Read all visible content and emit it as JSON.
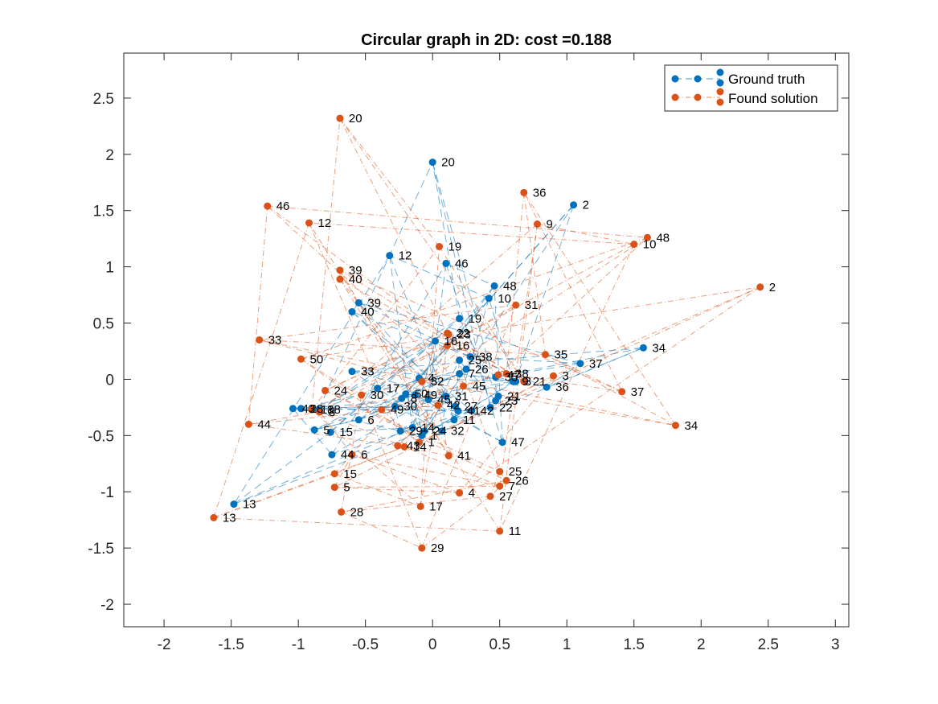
{
  "chart_data": {
    "type": "scatter",
    "title": "Circular graph in 2D: cost =0.188",
    "xlabel": "",
    "ylabel": "",
    "xlim": [
      -2.3,
      3.1
    ],
    "ylim": [
      -2.2,
      2.9
    ],
    "xticks": [
      -2,
      -1.5,
      -1,
      -0.5,
      0,
      0.5,
      1,
      1.5,
      2,
      2.5,
      3
    ],
    "yticks": [
      -2,
      -1.5,
      -1,
      -0.5,
      0,
      0.5,
      1,
      1.5,
      2,
      2.5
    ],
    "xtick_labels": [
      "-2",
      "-1.5",
      "-1",
      "-0.5",
      "0",
      "0.5",
      "1",
      "1.5",
      "2",
      "2.5",
      "3"
    ],
    "ytick_labels": [
      "-2",
      "-1.5",
      "-1",
      "-0.5",
      "0",
      "0.5",
      "1",
      "1.5",
      "2",
      "2.5"
    ],
    "grid": false,
    "legend_position": "top-right",
    "colors": {
      "ground_truth": "#0072BD",
      "found_solution": "#D95319",
      "axes": "#262626"
    },
    "series": [
      {
        "name": "Ground truth",
        "color": "#0072BD",
        "line_style": "dashed",
        "points": [
          {
            "id": "1",
            "x": -0.08,
            "y": -0.5
          },
          {
            "id": "2",
            "x": 1.05,
            "y": 1.55
          },
          {
            "id": "3",
            "x": 0.62,
            "y": -0.02
          },
          {
            "id": "4",
            "x": -0.1,
            "y": 0.01
          },
          {
            "id": "5",
            "x": -0.88,
            "y": -0.45
          },
          {
            "id": "6",
            "x": -0.55,
            "y": -0.36
          },
          {
            "id": "7",
            "x": 0.2,
            "y": 0.05
          },
          {
            "id": "8",
            "x": -0.23,
            "y": -0.17
          },
          {
            "id": "9",
            "x": 0.6,
            "y": -0.02
          },
          {
            "id": "10",
            "x": 0.42,
            "y": 0.72
          },
          {
            "id": "11",
            "x": 0.16,
            "y": -0.36
          },
          {
            "id": "12",
            "x": -0.32,
            "y": 1.1
          },
          {
            "id": "13",
            "x": -1.48,
            "y": -1.11
          },
          {
            "id": "14",
            "x": -0.15,
            "y": -0.43
          },
          {
            "id": "15",
            "x": -0.76,
            "y": -0.47
          },
          {
            "id": "16",
            "x": 0.02,
            "y": 0.34
          },
          {
            "id": "17",
            "x": -0.41,
            "y": -0.08
          },
          {
            "id": "18",
            "x": -0.85,
            "y": -0.27
          },
          {
            "id": "19",
            "x": 0.2,
            "y": 0.54
          },
          {
            "id": "20",
            "x": 0.0,
            "y": 1.93
          },
          {
            "id": "21",
            "x": 0.49,
            "y": -0.15
          },
          {
            "id": "22",
            "x": 0.43,
            "y": -0.25
          },
          {
            "id": "23",
            "x": 0.47,
            "y": -0.19
          },
          {
            "id": "24",
            "x": -0.06,
            "y": -0.46
          },
          {
            "id": "25",
            "x": 0.2,
            "y": 0.17
          },
          {
            "id": "26",
            "x": 0.25,
            "y": 0.09
          },
          {
            "id": "27",
            "x": 0.17,
            "y": -0.24
          },
          {
            "id": "28",
            "x": -0.98,
            "y": -0.26
          },
          {
            "id": "29",
            "x": -0.24,
            "y": -0.46
          },
          {
            "id": "30",
            "x": -0.28,
            "y": -0.24
          },
          {
            "id": "31",
            "x": 0.1,
            "y": -0.15
          },
          {
            "id": "32",
            "x": 0.07,
            "y": -0.46
          },
          {
            "id": "33",
            "x": -0.6,
            "y": 0.07
          },
          {
            "id": "34",
            "x": 1.57,
            "y": 0.28
          },
          {
            "id": "35",
            "x": 0.47,
            "y": 0.02
          },
          {
            "id": "36",
            "x": 0.85,
            "y": -0.07
          },
          {
            "id": "37",
            "x": 1.1,
            "y": 0.14
          },
          {
            "id": "38",
            "x": 0.28,
            "y": 0.2
          },
          {
            "id": "39",
            "x": -0.55,
            "y": 0.68
          },
          {
            "id": "40",
            "x": -0.6,
            "y": 0.6
          },
          {
            "id": "41",
            "x": 0.19,
            "y": -0.28
          },
          {
            "id": "42",
            "x": 0.29,
            "y": -0.28
          },
          {
            "id": "43",
            "x": -1.04,
            "y": -0.26
          },
          {
            "id": "44",
            "x": -0.75,
            "y": -0.67
          },
          {
            "id": "45",
            "x": -0.03,
            "y": -0.18
          },
          {
            "id": "46",
            "x": 0.1,
            "y": 1.03
          },
          {
            "id": "47",
            "x": 0.52,
            "y": -0.56
          },
          {
            "id": "48",
            "x": 0.46,
            "y": 0.83
          },
          {
            "id": "49",
            "x": -0.13,
            "y": -0.14
          },
          {
            "id": "50",
            "x": -0.2,
            "y": -0.13
          }
        ]
      },
      {
        "name": "Found solution",
        "color": "#D95319",
        "line_style": "dash-dot",
        "points": [
          {
            "id": "1",
            "x": -0.1,
            "y": -0.56
          },
          {
            "id": "2",
            "x": 2.44,
            "y": 0.82
          },
          {
            "id": "3",
            "x": 0.9,
            "y": 0.03
          },
          {
            "id": "4",
            "x": 0.2,
            "y": -1.01
          },
          {
            "id": "5",
            "x": -0.73,
            "y": -0.96
          },
          {
            "id": "6",
            "x": -0.6,
            "y": -0.67
          },
          {
            "id": "7",
            "x": 0.5,
            "y": -0.95
          },
          {
            "id": "8",
            "x": -0.84,
            "y": -0.29
          },
          {
            "id": "9",
            "x": 0.78,
            "y": 1.38
          },
          {
            "id": "10",
            "x": 1.5,
            "y": 1.2
          },
          {
            "id": "11",
            "x": 0.5,
            "y": -1.35
          },
          {
            "id": "12",
            "x": -0.92,
            "y": 1.39
          },
          {
            "id": "13",
            "x": -1.63,
            "y": -1.23
          },
          {
            "id": "14",
            "x": -0.21,
            "y": -0.6
          },
          {
            "id": "15",
            "x": -0.73,
            "y": -0.84
          },
          {
            "id": "16",
            "x": 0.11,
            "y": 0.3
          },
          {
            "id": "17",
            "x": -0.09,
            "y": -1.13
          },
          {
            "id": "18",
            "x": -0.9,
            "y": -0.27
          },
          {
            "id": "19",
            "x": 0.05,
            "y": 1.18
          },
          {
            "id": "20",
            "x": -0.69,
            "y": 2.32
          },
          {
            "id": "21",
            "x": 0.68,
            "y": -0.02
          },
          {
            "id": "22",
            "x": 0.11,
            "y": 0.41
          },
          {
            "id": "23",
            "x": 0.12,
            "y": 0.4
          },
          {
            "id": "24",
            "x": -0.8,
            "y": -0.1
          },
          {
            "id": "25",
            "x": 0.5,
            "y": -0.82
          },
          {
            "id": "26",
            "x": 0.55,
            "y": -0.9
          },
          {
            "id": "27",
            "x": 0.43,
            "y": -1.04
          },
          {
            "id": "28",
            "x": -0.68,
            "y": -1.18
          },
          {
            "id": "29",
            "x": -0.08,
            "y": -1.5
          },
          {
            "id": "30",
            "x": -0.53,
            "y": -0.14
          },
          {
            "id": "31",
            "x": 0.62,
            "y": 0.66
          },
          {
            "id": "32",
            "x": -0.08,
            "y": -0.02
          },
          {
            "id": "33",
            "x": -1.29,
            "y": 0.35
          },
          {
            "id": "34",
            "x": 1.81,
            "y": -0.41
          },
          {
            "id": "35",
            "x": 0.84,
            "y": 0.22
          },
          {
            "id": "36",
            "x": 0.68,
            "y": 1.66
          },
          {
            "id": "37",
            "x": 1.41,
            "y": -0.11
          },
          {
            "id": "38",
            "x": 0.55,
            "y": 0.05
          },
          {
            "id": "39",
            "x": -0.69,
            "y": 0.97
          },
          {
            "id": "40",
            "x": -0.69,
            "y": 0.89
          },
          {
            "id": "41",
            "x": 0.12,
            "y": -0.68
          },
          {
            "id": "42",
            "x": 0.04,
            "y": -0.23
          },
          {
            "id": "43",
            "x": -0.26,
            "y": -0.59
          },
          {
            "id": "44",
            "x": -1.37,
            "y": -0.4
          },
          {
            "id": "45",
            "x": 0.23,
            "y": -0.06
          },
          {
            "id": "46",
            "x": -1.23,
            "y": 1.54
          },
          {
            "id": "47",
            "x": 0.49,
            "y": 0.04
          },
          {
            "id": "48",
            "x": 1.6,
            "y": 1.26
          },
          {
            "id": "49",
            "x": -0.38,
            "y": -0.27
          },
          {
            "id": "50",
            "x": -0.98,
            "y": 0.18
          }
        ]
      }
    ],
    "edges": [
      [
        1,
        2
      ],
      [
        2,
        3
      ],
      [
        3,
        4
      ],
      [
        4,
        5
      ],
      [
        5,
        6
      ],
      [
        6,
        7
      ],
      [
        7,
        8
      ],
      [
        8,
        9
      ],
      [
        9,
        10
      ],
      [
        10,
        11
      ],
      [
        11,
        12
      ],
      [
        12,
        13
      ],
      [
        13,
        14
      ],
      [
        14,
        15
      ],
      [
        15,
        16
      ],
      [
        16,
        17
      ],
      [
        17,
        18
      ],
      [
        18,
        19
      ],
      [
        19,
        20
      ],
      [
        20,
        21
      ],
      [
        21,
        22
      ],
      [
        22,
        23
      ],
      [
        23,
        24
      ],
      [
        24,
        25
      ],
      [
        25,
        26
      ],
      [
        26,
        27
      ],
      [
        27,
        28
      ],
      [
        28,
        29
      ],
      [
        29,
        30
      ],
      [
        30,
        31
      ],
      [
        31,
        32
      ],
      [
        32,
        33
      ],
      [
        33,
        34
      ],
      [
        34,
        35
      ],
      [
        35,
        36
      ],
      [
        36,
        37
      ],
      [
        37,
        38
      ],
      [
        38,
        39
      ],
      [
        39,
        40
      ],
      [
        40,
        41
      ],
      [
        41,
        42
      ],
      [
        42,
        43
      ],
      [
        43,
        44
      ],
      [
        44,
        45
      ],
      [
        45,
        46
      ],
      [
        46,
        47
      ],
      [
        47,
        48
      ],
      [
        48,
        49
      ],
      [
        49,
        50
      ],
      [
        50,
        1
      ],
      [
        1,
        3
      ],
      [
        2,
        4
      ],
      [
        3,
        5
      ],
      [
        4,
        6
      ],
      [
        5,
        7
      ],
      [
        6,
        8
      ],
      [
        7,
        9
      ],
      [
        8,
        10
      ],
      [
        9,
        11
      ],
      [
        10,
        12
      ],
      [
        11,
        13
      ],
      [
        12,
        14
      ],
      [
        13,
        15
      ],
      [
        14,
        16
      ],
      [
        15,
        17
      ],
      [
        16,
        18
      ],
      [
        17,
        19
      ],
      [
        18,
        20
      ],
      [
        19,
        21
      ],
      [
        20,
        22
      ],
      [
        21,
        23
      ],
      [
        22,
        24
      ],
      [
        23,
        25
      ],
      [
        24,
        26
      ],
      [
        25,
        27
      ],
      [
        26,
        28
      ],
      [
        27,
        29
      ],
      [
        28,
        30
      ],
      [
        29,
        31
      ],
      [
        30,
        32
      ],
      [
        31,
        33
      ],
      [
        32,
        34
      ],
      [
        33,
        35
      ],
      [
        34,
        36
      ],
      [
        35,
        37
      ],
      [
        36,
        38
      ],
      [
        37,
        39
      ],
      [
        38,
        40
      ],
      [
        39,
        41
      ],
      [
        40,
        42
      ],
      [
        41,
        43
      ],
      [
        42,
        44
      ],
      [
        43,
        45
      ],
      [
        44,
        46
      ],
      [
        45,
        47
      ],
      [
        46,
        48
      ],
      [
        47,
        49
      ],
      [
        48,
        50
      ],
      [
        49,
        1
      ],
      [
        50,
        2
      ]
    ]
  }
}
